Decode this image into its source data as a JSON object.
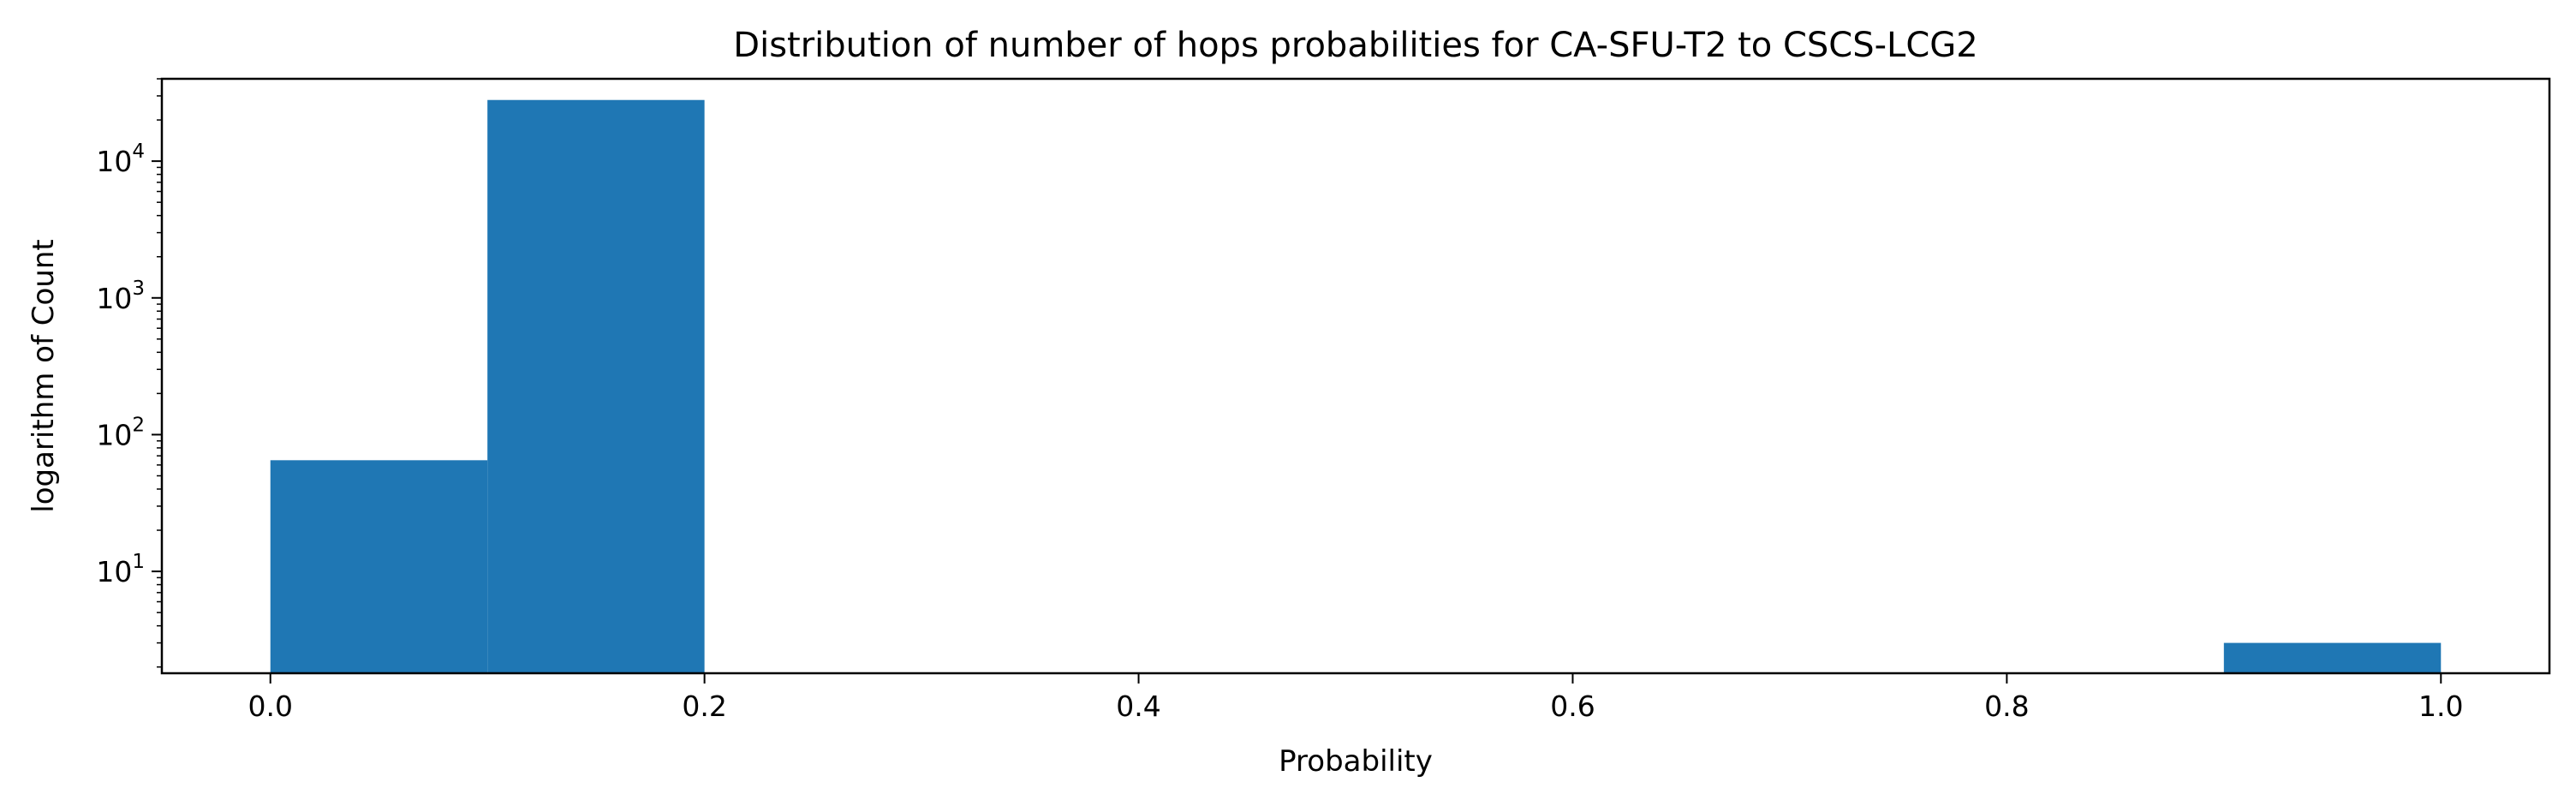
{
  "chart_data": {
    "type": "bar",
    "title": "Distribution of number of hops probabilities for CA-SFU-T2 to CSCS-LCG2",
    "xlabel": "Probability",
    "ylabel": "logarithm of Count",
    "y_scale": "log",
    "xlim": [
      -0.05,
      1.05
    ],
    "ylim": [
      1.8,
      40000
    ],
    "x_ticks": [
      {
        "value": 0.0,
        "label": "0.0"
      },
      {
        "value": 0.2,
        "label": "0.2"
      },
      {
        "value": 0.4,
        "label": "0.4"
      },
      {
        "value": 0.6,
        "label": "0.6"
      },
      {
        "value": 0.8,
        "label": "0.8"
      },
      {
        "value": 1.0,
        "label": "1.0"
      }
    ],
    "y_ticks": [
      {
        "value": 10,
        "base": "10",
        "exp": "1"
      },
      {
        "value": 100,
        "base": "10",
        "exp": "2"
      },
      {
        "value": 1000,
        "base": "10",
        "exp": "3"
      },
      {
        "value": 10000,
        "base": "10",
        "exp": "4"
      }
    ],
    "bins": [
      {
        "x0": 0.0,
        "x1": 0.1,
        "count": 65
      },
      {
        "x0": 0.1,
        "x1": 0.2,
        "count": 28000
      },
      {
        "x0": 0.9,
        "x1": 1.0,
        "count": 3
      }
    ],
    "grid": false,
    "bar_color": "#1f77b4"
  }
}
